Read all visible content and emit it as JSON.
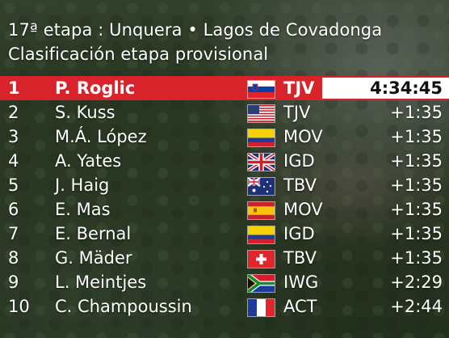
{
  "header": {
    "title": "17ª etapa : Unquera • Lagos de Covadonga",
    "subtitle": "Clasificación etapa provisional"
  },
  "colors": {
    "leader_band": "#d8232a",
    "text": "#ffffff"
  },
  "standings": [
    {
      "pos": "1",
      "name": "P. Roglic",
      "flag": "slovenia-flag-icon",
      "team": "TJV",
      "time": "4:34:45"
    },
    {
      "pos": "2",
      "name": "S. Kuss",
      "flag": "usa-flag-icon",
      "team": "TJV",
      "time": "+1:35"
    },
    {
      "pos": "3",
      "name": "M.Á. López",
      "flag": "colombia-flag-icon",
      "team": "MOV",
      "time": "+1:35"
    },
    {
      "pos": "4",
      "name": "A. Yates",
      "flag": "uk-flag-icon",
      "team": "IGD",
      "time": "+1:35"
    },
    {
      "pos": "5",
      "name": "J. Haig",
      "flag": "australia-flag-icon",
      "team": "TBV",
      "time": "+1:35"
    },
    {
      "pos": "6",
      "name": "E. Mas",
      "flag": "spain-flag-icon",
      "team": "MOV",
      "time": "+1:35"
    },
    {
      "pos": "7",
      "name": "E. Bernal",
      "flag": "colombia-flag-icon",
      "team": "IGD",
      "time": "+1:35"
    },
    {
      "pos": "8",
      "name": "G. Mäder",
      "flag": "switzerland-flag-icon",
      "team": "TBV",
      "time": "+1:35"
    },
    {
      "pos": "9",
      "name": "L. Meintjes",
      "flag": "south-africa-flag-icon",
      "team": "IWG",
      "time": "+2:29"
    },
    {
      "pos": "10",
      "name": "C. Champoussin",
      "flag": "france-flag-icon",
      "team": "ACT",
      "time": "+2:44"
    }
  ]
}
